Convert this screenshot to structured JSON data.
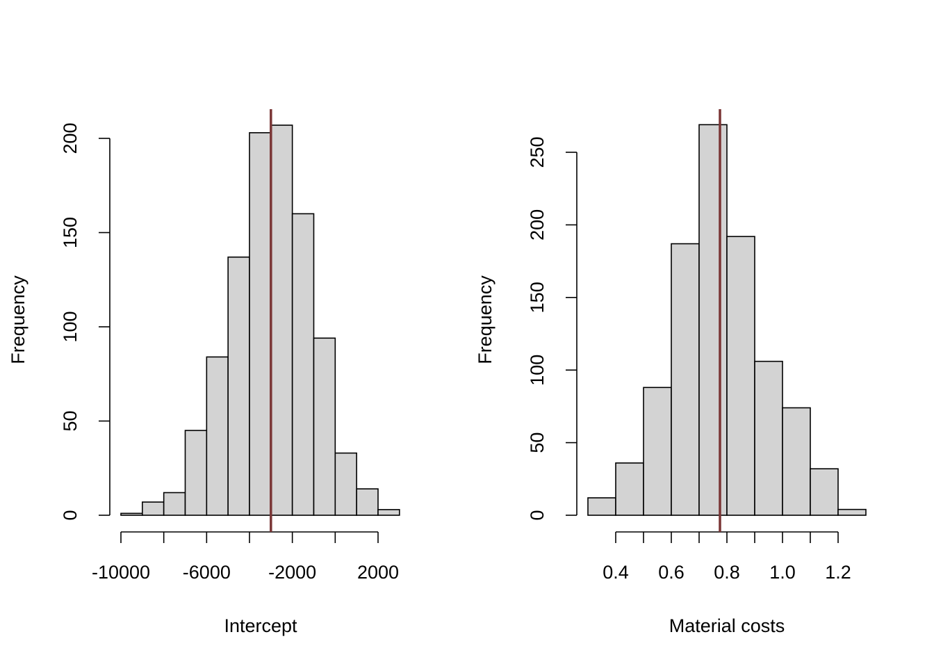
{
  "chart_data": [
    {
      "type": "bar",
      "subtype": "histogram",
      "title": "",
      "xlabel": "Intercept",
      "ylabel": "Frequency",
      "bin_width": 1000,
      "bins": [
        {
          "from": -10000,
          "to": -9000,
          "count": 1
        },
        {
          "from": -9000,
          "to": -8000,
          "count": 7
        },
        {
          "from": -8000,
          "to": -7000,
          "count": 12
        },
        {
          "from": -7000,
          "to": -6000,
          "count": 45
        },
        {
          "from": -6000,
          "to": -5000,
          "count": 84
        },
        {
          "from": -5000,
          "to": -4000,
          "count": 137
        },
        {
          "from": -4000,
          "to": -3000,
          "count": 203
        },
        {
          "from": -3000,
          "to": -2000,
          "count": 207
        },
        {
          "from": -2000,
          "to": -1000,
          "count": 160
        },
        {
          "from": -1000,
          "to": 0,
          "count": 94
        },
        {
          "from": 0,
          "to": 1000,
          "count": 33
        },
        {
          "from": 1000,
          "to": 2000,
          "count": 14
        },
        {
          "from": 2000,
          "to": 3000,
          "count": 3
        }
      ],
      "xlim": [
        -10000,
        3000
      ],
      "ylim": [
        0,
        200
      ],
      "xticks": [
        -10000,
        -8000,
        -6000,
        -4000,
        -2000,
        0,
        2000
      ],
      "xtick_labels": [
        "-10000",
        "",
        "-6000",
        "",
        "-2000",
        "",
        "2000"
      ],
      "yticks": [
        0,
        50,
        100,
        150,
        200
      ],
      "ytick_labels": [
        "0",
        "50",
        "100",
        "150",
        "200"
      ],
      "reference_line": {
        "x": -3000,
        "color": "#7a3535"
      },
      "bar_fill": "#d3d3d3",
      "bar_stroke": "#000000",
      "grid": false
    },
    {
      "type": "bar",
      "subtype": "histogram",
      "title": "",
      "xlabel": "Material costs",
      "ylabel": "Frequency",
      "bin_width": 0.1,
      "bins": [
        {
          "from": 0.3,
          "to": 0.4,
          "count": 12
        },
        {
          "from": 0.4,
          "to": 0.5,
          "count": 36
        },
        {
          "from": 0.5,
          "to": 0.6,
          "count": 88
        },
        {
          "from": 0.6,
          "to": 0.7,
          "count": 187
        },
        {
          "from": 0.7,
          "to": 0.8,
          "count": 269
        },
        {
          "from": 0.8,
          "to": 0.9,
          "count": 192
        },
        {
          "from": 0.9,
          "to": 1.0,
          "count": 106
        },
        {
          "from": 1.0,
          "to": 1.1,
          "count": 74
        },
        {
          "from": 1.1,
          "to": 1.2,
          "count": 32
        },
        {
          "from": 1.2,
          "to": 1.3,
          "count": 4
        }
      ],
      "xlim": [
        0.4,
        1.2
      ],
      "ylim": [
        0,
        250
      ],
      "xticks": [
        0.4,
        0.5,
        0.6,
        0.7,
        0.8,
        0.9,
        1.0,
        1.1,
        1.2
      ],
      "xtick_labels": [
        "0.4",
        "",
        "0.6",
        "",
        "0.8",
        "",
        "1.0",
        "",
        "1.2"
      ],
      "yticks": [
        0,
        50,
        100,
        150,
        200,
        250
      ],
      "ytick_labels": [
        "0",
        "50",
        "100",
        "150",
        "200",
        "250"
      ],
      "reference_line": {
        "x": 0.775,
        "color": "#7a3535"
      },
      "bar_fill": "#d3d3d3",
      "bar_stroke": "#000000",
      "grid": false
    }
  ]
}
